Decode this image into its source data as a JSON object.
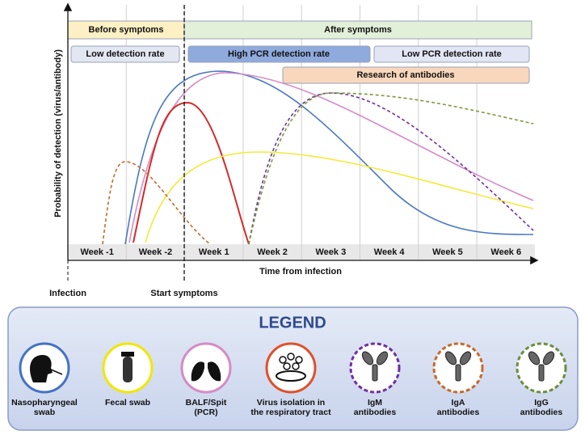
{
  "phases": [
    "Before symptoms",
    "After symptoms"
  ],
  "detection": [
    "Low detection rate",
    "High PCR detection rate",
    "Low PCR detection rate"
  ],
  "antibodies": "Research of antibodies",
  "weeks": [
    "Week -1",
    "Week -2",
    "Week 1",
    "Week 2",
    "Week 3",
    "Week 4",
    "Week 5",
    "Week 6"
  ],
  "x_axis_label": "Time from infection",
  "y_axis_label": "Probability of detection (virus/antibody)",
  "markers": {
    "infection": "Infection",
    "start": "Start symptoms"
  },
  "legend": {
    "title": "LEGEND",
    "items": [
      {
        "lines": [
          "Nasopharyngeal",
          "swab"
        ]
      },
      {
        "lines": [
          "Fecal swab"
        ]
      },
      {
        "lines": [
          "BALF/Spit",
          "(PCR)"
        ]
      },
      {
        "lines": [
          "Virus isolation in",
          "the respiratory tract"
        ]
      },
      {
        "lines": [
          "IgM",
          "antibodies"
        ]
      },
      {
        "lines": [
          "IgA",
          "antibodies"
        ]
      },
      {
        "lines": [
          "IgG",
          "antibodies"
        ]
      }
    ]
  }
}
